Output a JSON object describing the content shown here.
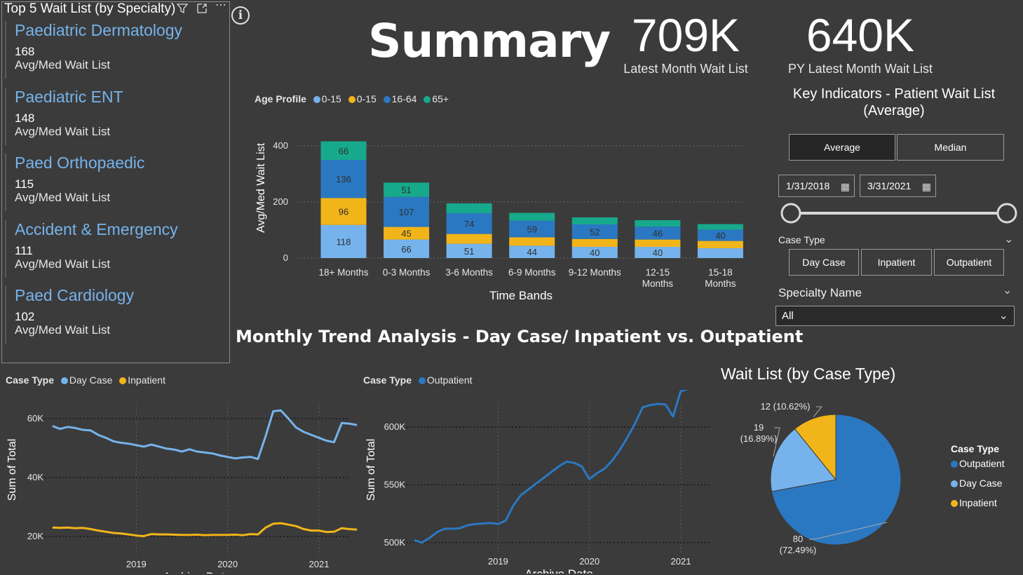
{
  "colors": {
    "age_0_15_a": "#76b3ec",
    "age_0_15_b": "#f2b519",
    "age_16_64": "#2b78c2",
    "age_65_plus": "#17a98c",
    "day_case": "#76b3ec",
    "inpatient": "#f2b519",
    "outpatient": "#2b78c2",
    "card_title": "#76b3ec",
    "background": "#3b3b3b"
  },
  "top5": {
    "title": "Top 5 Wait List (by Specialty)",
    "icons": [
      "filter-icon",
      "focus-mode-icon",
      "more-options-icon"
    ],
    "items": [
      {
        "name": "Paediatric Dermatology",
        "value": "168",
        "label": "Avg/Med Wait List"
      },
      {
        "name": "Paediatric ENT",
        "value": "148",
        "label": "Avg/Med Wait List"
      },
      {
        "name": "Paed Orthopaedic",
        "value": "115",
        "label": "Avg/Med Wait List"
      },
      {
        "name": "Accident & Emergency",
        "value": "111",
        "label": "Avg/Med Wait List"
      },
      {
        "name": "Paed Cardiology",
        "value": "102",
        "label": "Avg/Med Wait List"
      }
    ]
  },
  "info_icon_text": "i",
  "summary": {
    "title": "Summary",
    "kpi1": {
      "value": "709K",
      "label": "Latest Month Wait List"
    },
    "kpi2": {
      "value": "640K",
      "label": "PY Latest Month Wait List"
    }
  },
  "key_indicators": {
    "title_line1": "Key Indicators - Patient Wait List",
    "title_line2": "(Average)",
    "toggle": {
      "options": [
        "Average",
        "Median"
      ],
      "selected": "Average"
    },
    "date_start": "1/31/2018",
    "date_end": "3/31/2021",
    "case_type_label": "Case Type",
    "case_type_buttons": [
      "Day Case",
      "Inpatient",
      "Outpatient"
    ],
    "specialty_label": "Specialty Name",
    "specialty_value": "All"
  },
  "age_legend": {
    "title": "Age Profile",
    "items": [
      "0-15",
      "0-15",
      "16-64",
      "65+"
    ]
  },
  "trend_title": "Monthly Trend Analysis - Day Case/ Inpatient vs. Outpatient",
  "line_legend_1": {
    "title": "Case Type",
    "items": [
      "Day Case",
      "Inpatient"
    ]
  },
  "line_legend_2": {
    "title": "Case Type",
    "items": [
      "Outpatient"
    ]
  },
  "pie_title": "Wait List (by Case Type)",
  "pie_legend": {
    "title": "Case Type",
    "items": [
      "Outpatient",
      "Day Case",
      "Inpatient"
    ]
  },
  "chart_data": [
    {
      "type": "bar",
      "stacked": true,
      "xlabel": "Time Bands",
      "ylabel": "Avg/Med Wait List",
      "ylim": [
        0,
        400
      ],
      "yticks": [
        "0",
        "200",
        "400"
      ],
      "categories": [
        [
          "18+ Months"
        ],
        [
          "0-3 Months"
        ],
        [
          "3-6 Months"
        ],
        [
          "6-9 Months"
        ],
        [
          "9-12 Months"
        ],
        [
          "12-15",
          "Months"
        ],
        [
          "15-18",
          "Months"
        ]
      ],
      "series": [
        {
          "name": "0-15",
          "values": [
            118,
            66,
            51,
            44,
            40,
            40,
            35
          ],
          "labels": [
            "118",
            "66",
            "51",
            "44",
            "40",
            "40",
            ""
          ]
        },
        {
          "name": "0-15",
          "values": [
            96,
            45,
            35,
            30,
            28,
            26,
            26
          ],
          "labels": [
            "96",
            "45",
            "",
            "",
            "",
            "",
            ""
          ]
        },
        {
          "name": "16-64",
          "values": [
            136,
            107,
            74,
            59,
            52,
            46,
            40
          ],
          "labels": [
            "136",
            "107",
            "74",
            "59",
            "52",
            "46",
            "40"
          ]
        },
        {
          "name": "65+",
          "values": [
            66,
            51,
            35,
            28,
            25,
            23,
            20
          ],
          "labels": [
            "66",
            "51",
            "",
            "",
            "",
            "",
            ""
          ]
        }
      ]
    },
    {
      "type": "line",
      "xlabel": "Archive Date",
      "ylabel": "Sum of Total",
      "yticks": [
        "20K",
        "40K",
        "60K"
      ],
      "ylim": [
        15000,
        65000
      ],
      "xticks": [
        "2019",
        "2020",
        "2021"
      ],
      "x_domain": [
        2018.0,
        2021.33
      ],
      "series": [
        {
          "name": "Day Case",
          "x_start": 2018.083,
          "x_step": 0.0833,
          "values": [
            57500,
            56500,
            57200,
            56800,
            56200,
            56000,
            54500,
            53500,
            52300,
            51800,
            51500,
            51000,
            50500,
            51200,
            50500,
            49800,
            49500,
            48800,
            49600,
            48800,
            48500,
            48200,
            47500,
            47000,
            46500,
            46800,
            47000,
            46300,
            54000,
            62500,
            62800,
            60000,
            57000,
            55500,
            54500,
            53500,
            52500,
            52000,
            58500,
            58300,
            57800
          ]
        },
        {
          "name": "Inpatient",
          "x_start": 2018.083,
          "x_step": 0.0833,
          "values": [
            23000,
            22900,
            23000,
            22800,
            22900,
            22500,
            22000,
            21600,
            21200,
            21000,
            20700,
            20300,
            20100,
            20800,
            20700,
            20700,
            20600,
            20500,
            20500,
            20600,
            20400,
            20500,
            20500,
            20500,
            20600,
            20400,
            20800,
            20700,
            23000,
            24300,
            24500,
            24000,
            23500,
            22500,
            22000,
            22000,
            21500,
            21600,
            22800,
            22500,
            22300
          ]
        }
      ]
    },
    {
      "type": "line",
      "xlabel": "Archive Date",
      "ylabel": "Sum of Total",
      "yticks": [
        "500K",
        "550K",
        "600K"
      ],
      "ylim": [
        495000,
        620000
      ],
      "xticks": [
        "2019",
        "2020",
        "2021"
      ],
      "x_domain": [
        2018.0,
        2021.33
      ],
      "series": [
        {
          "name": "Outpatient",
          "x_start": 2018.083,
          "x_step": 0.0833,
          "values": [
            502000,
            500000,
            504000,
            509000,
            512000,
            512000,
            512500,
            515000,
            516000,
            516500,
            517000,
            516000,
            519000,
            532000,
            541000,
            546000,
            551000,
            556000,
            561000,
            566000,
            570000,
            569000,
            566000,
            555000,
            560000,
            564000,
            571000,
            580000,
            591000,
            603000,
            617000,
            619000,
            620000,
            619500,
            609000,
            631000,
            633000,
            634000
          ]
        }
      ]
    },
    {
      "type": "pie",
      "title": "Wait List (by Case Type)",
      "slices": [
        {
          "name": "Outpatient",
          "value": 80,
          "label_line1": "80",
          "label_line2": "(72.49%)"
        },
        {
          "name": "Day Case",
          "value": 19,
          "label_line1": "19",
          "label_line2": "(16.89%)"
        },
        {
          "name": "Inpatient",
          "value": 12,
          "label_line1": "12 (10.62%)",
          "label_line2": ""
        }
      ]
    }
  ]
}
